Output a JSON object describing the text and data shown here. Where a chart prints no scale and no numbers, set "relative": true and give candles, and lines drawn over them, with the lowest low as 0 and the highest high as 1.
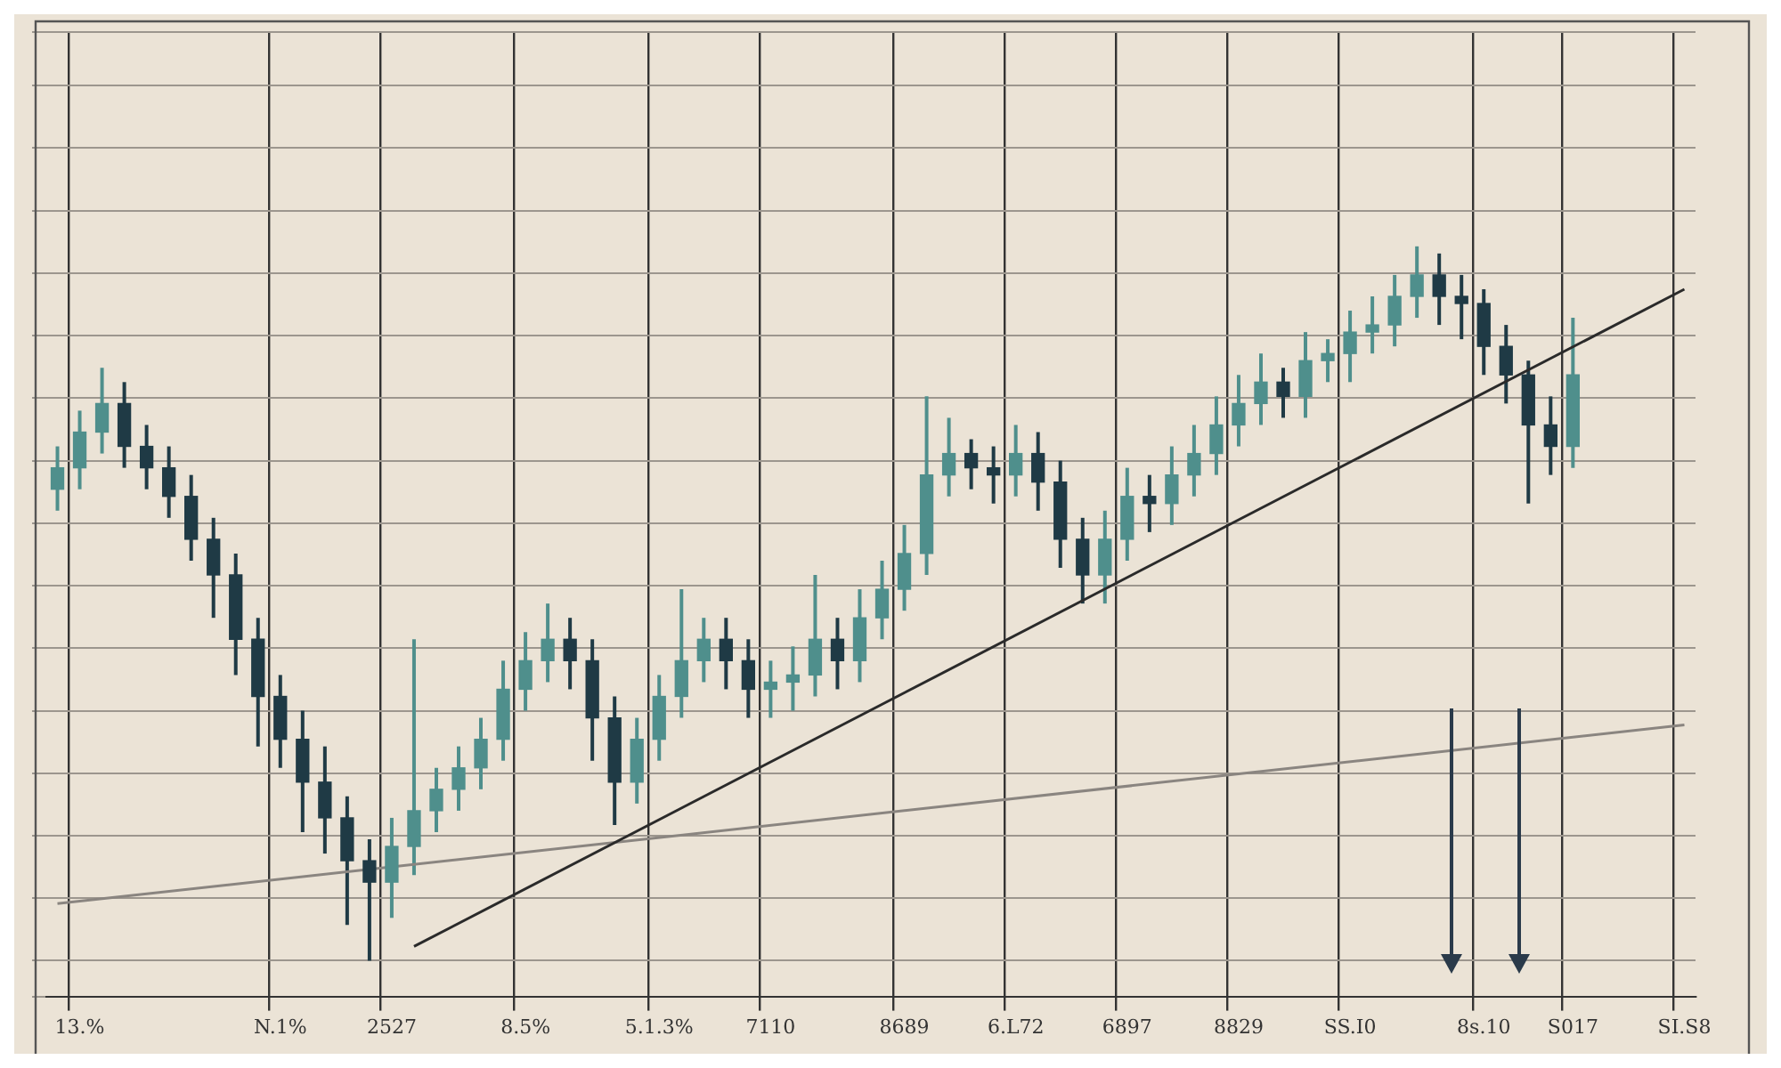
{
  "chart_data": {
    "type": "candlestick",
    "relative": true,
    "grid": true,
    "tick_labels": "x",
    "categories": [
      null,
      "13.%",
      null,
      null,
      null,
      null,
      null,
      null,
      null,
      null,
      "N.1%",
      null,
      null,
      null,
      null,
      "2527",
      null,
      null,
      null,
      null,
      null,
      "8.5%",
      null,
      null,
      null,
      null,
      null,
      "5.1.3%",
      null,
      null,
      null,
      null,
      "7110",
      null,
      null,
      null,
      null,
      null,
      "8689",
      null,
      null,
      null,
      null,
      "6.L72",
      null,
      null,
      null,
      null,
      "6897",
      null,
      null,
      null,
      null,
      "8829",
      null,
      null,
      null,
      null,
      "SS.I0",
      null,
      null,
      null,
      null,
      null,
      "8s.10",
      null,
      null,
      null,
      "S017",
      null,
      null,
      null,
      null,
      "SI.S8"
    ],
    "ohlc": [
      [
        0.66,
        0.72,
        0.63,
        0.69
      ],
      [
        0.69,
        0.77,
        0.66,
        0.74
      ],
      [
        0.74,
        0.83,
        0.71,
        0.78
      ],
      [
        0.78,
        0.81,
        0.69,
        0.72
      ],
      [
        0.72,
        0.75,
        0.66,
        0.69
      ],
      [
        0.69,
        0.72,
        0.62,
        0.65
      ],
      [
        0.65,
        0.68,
        0.56,
        0.59
      ],
      [
        0.59,
        0.62,
        0.48,
        0.54
      ],
      [
        0.54,
        0.57,
        0.4,
        0.45
      ],
      [
        0.45,
        0.48,
        0.3,
        0.37
      ],
      [
        0.37,
        0.4,
        0.27,
        0.31
      ],
      [
        0.31,
        0.35,
        0.18,
        0.25
      ],
      [
        0.25,
        0.3,
        0.15,
        0.2
      ],
      [
        0.2,
        0.23,
        0.05,
        0.14
      ],
      [
        0.14,
        0.17,
        0,
        0.11
      ],
      [
        0.11,
        0.2,
        0.06,
        0.16
      ],
      [
        0.16,
        0.45,
        0.12,
        0.21
      ],
      [
        0.21,
        0.27,
        0.18,
        0.24
      ],
      [
        0.24,
        0.3,
        0.21,
        0.27
      ],
      [
        0.27,
        0.34,
        0.24,
        0.31
      ],
      [
        0.31,
        0.42,
        0.28,
        0.38
      ],
      [
        0.38,
        0.46,
        0.35,
        0.42
      ],
      [
        0.42,
        0.5,
        0.39,
        0.45
      ],
      [
        0.45,
        0.48,
        0.38,
        0.42
      ],
      [
        0.42,
        0.45,
        0.28,
        0.34
      ],
      [
        0.34,
        0.37,
        0.19,
        0.25
      ],
      [
        0.25,
        0.34,
        0.22,
        0.31
      ],
      [
        0.31,
        0.4,
        0.28,
        0.37
      ],
      [
        0.37,
        0.52,
        0.34,
        0.42
      ],
      [
        0.42,
        0.48,
        0.39,
        0.45
      ],
      [
        0.45,
        0.48,
        0.38,
        0.42
      ],
      [
        0.42,
        0.45,
        0.34,
        0.38
      ],
      [
        0.38,
        0.42,
        0.34,
        0.39
      ],
      [
        0.39,
        0.44,
        0.35,
        0.4
      ],
      [
        0.4,
        0.54,
        0.37,
        0.45
      ],
      [
        0.45,
        0.48,
        0.38,
        0.42
      ],
      [
        0.42,
        0.52,
        0.39,
        0.48
      ],
      [
        0.48,
        0.56,
        0.45,
        0.52
      ],
      [
        0.52,
        0.61,
        0.49,
        0.57
      ],
      [
        0.57,
        0.79,
        0.54,
        0.68
      ],
      [
        0.68,
        0.76,
        0.65,
        0.71
      ],
      [
        0.71,
        0.73,
        0.66,
        0.69
      ],
      [
        0.69,
        0.72,
        0.64,
        0.68
      ],
      [
        0.68,
        0.75,
        0.65,
        0.71
      ],
      [
        0.71,
        0.74,
        0.63,
        0.67
      ],
      [
        0.67,
        0.7,
        0.55,
        0.59
      ],
      [
        0.59,
        0.62,
        0.5,
        0.54
      ],
      [
        0.54,
        0.63,
        0.5,
        0.59
      ],
      [
        0.59,
        0.69,
        0.56,
        0.65
      ],
      [
        0.65,
        0.68,
        0.6,
        0.64
      ],
      [
        0.64,
        0.72,
        0.61,
        0.68
      ],
      [
        0.68,
        0.75,
        0.65,
        0.71
      ],
      [
        0.71,
        0.79,
        0.68,
        0.75
      ],
      [
        0.75,
        0.82,
        0.72,
        0.78
      ],
      [
        0.78,
        0.85,
        0.75,
        0.81
      ],
      [
        0.81,
        0.83,
        0.76,
        0.79
      ],
      [
        0.79,
        0.88,
        0.76,
        0.84
      ],
      [
        0.84,
        0.87,
        0.81,
        0.85
      ],
      [
        0.85,
        0.91,
        0.81,
        0.88
      ],
      [
        0.88,
        0.93,
        0.85,
        0.89
      ],
      [
        0.89,
        0.96,
        0.86,
        0.93
      ],
      [
        0.93,
        1,
        0.9,
        0.96
      ],
      [
        0.96,
        0.99,
        0.89,
        0.93
      ],
      [
        0.93,
        0.96,
        0.87,
        0.92
      ],
      [
        0.92,
        0.94,
        0.82,
        0.86
      ],
      [
        0.86,
        0.89,
        0.78,
        0.82
      ],
      [
        0.82,
        0.84,
        0.64,
        0.75
      ],
      [
        0.75,
        0.79,
        0.68,
        0.72
      ],
      [
        0.72,
        0.9,
        0.69,
        0.82
      ],
      null,
      null,
      null,
      null,
      null
    ],
    "colors": [
      "#4f8f8c",
      "#4f8f8c",
      "#4f8f8c",
      "#1f3a45",
      "#1f3a45",
      "#1f3a45",
      "#1f3a45",
      "#1f3a45",
      "#1f3a45",
      "#1f3a45",
      "#1f3a45",
      "#1f3a45",
      "#1f3a45",
      "#1f3a45",
      "#1f3a45",
      "#4f8f8c",
      "#4f8f8c",
      "#4f8f8c",
      "#4f8f8c",
      "#4f8f8c",
      "#4f8f8c",
      "#4f8f8c",
      "#4f8f8c",
      "#1f3a45",
      "#1f3a45",
      "#1f3a45",
      "#4f8f8c",
      "#4f8f8c",
      "#4f8f8c",
      "#4f8f8c",
      "#1f3a45",
      "#1f3a45",
      "#4f8f8c",
      "#4f8f8c",
      "#4f8f8c",
      "#1f3a45",
      "#4f8f8c",
      "#4f8f8c",
      "#4f8f8c",
      "#4f8f8c",
      "#4f8f8c",
      "#1f3a45",
      "#1f3a45",
      "#4f8f8c",
      "#1f3a45",
      "#1f3a45",
      "#1f3a45",
      "#4f8f8c",
      "#4f8f8c",
      "#1f3a45",
      "#4f8f8c",
      "#4f8f8c",
      "#4f8f8c",
      "#4f8f8c",
      "#4f8f8c",
      "#1f3a45",
      "#4f8f8c",
      "#4f8f8c",
      "#4f8f8c",
      "#4f8f8c",
      "#4f8f8c",
      "#4f8f8c",
      "#1f3a45",
      "#1f3a45",
      "#1f3a45",
      "#1f3a45",
      "#1f3a45",
      "#1f3a45",
      "#4f8f8c",
      null,
      null,
      null,
      null,
      null
    ],
    "series": [
      {
        "type": "line",
        "color": "#2a2a2a",
        "values": [
          null,
          null,
          null,
          null,
          null,
          null,
          null,
          null,
          null,
          null,
          null,
          null,
          null,
          null,
          null,
          null,
          0.02,
          null,
          null,
          null,
          null,
          null,
          null,
          null,
          null,
          null,
          null,
          null,
          null,
          null,
          null,
          null,
          null,
          null,
          null,
          null,
          null,
          null,
          null,
          null,
          null,
          null,
          null,
          null,
          null,
          null,
          null,
          null,
          null,
          null,
          null,
          null,
          null,
          null,
          null,
          null,
          null,
          null,
          null,
          null,
          null,
          null,
          null,
          null,
          null,
          null,
          null,
          null,
          null,
          null,
          null,
          null,
          null,
          0.94
        ]
      },
      {
        "type": "line",
        "color": "#8a8580",
        "values": [
          0.08,
          null,
          null,
          null,
          null,
          null,
          null,
          null,
          null,
          null,
          null,
          null,
          null,
          null,
          null,
          null,
          null,
          null,
          null,
          null,
          null,
          null,
          null,
          null,
          null,
          null,
          null,
          null,
          null,
          null,
          null,
          null,
          null,
          null,
          null,
          null,
          null,
          null,
          null,
          null,
          null,
          null,
          null,
          null,
          null,
          null,
          null,
          null,
          null,
          null,
          null,
          null,
          null,
          null,
          null,
          null,
          null,
          null,
          null,
          null,
          null,
          null,
          null,
          null,
          null,
          null,
          null,
          null,
          null,
          null,
          null,
          null,
          null,
          0.33
        ]
      }
    ]
  }
}
